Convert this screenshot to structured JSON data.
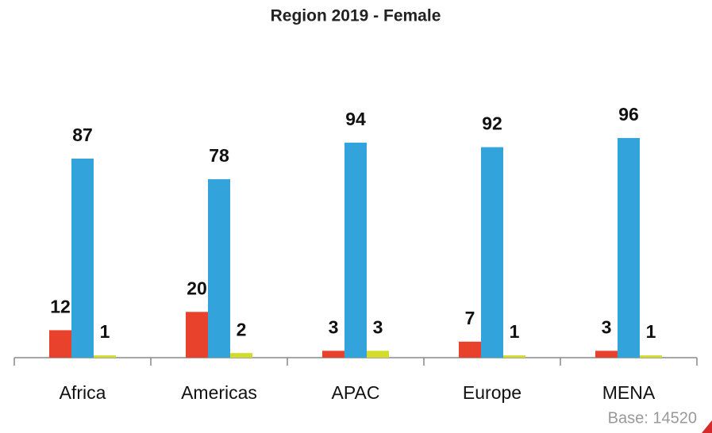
{
  "chart_data": {
    "type": "bar",
    "title": "Region 2019 - Female",
    "categories": [
      "Africa",
      "Americas",
      "APAC",
      "Europe",
      "MENA"
    ],
    "series": [
      {
        "color": "#e8412c",
        "values": [
          12,
          20,
          3,
          7,
          3
        ]
      },
      {
        "color": "#33a3dc",
        "values": [
          87,
          78,
          94,
          92,
          96
        ]
      },
      {
        "color": "#d4dc2a",
        "values": [
          1,
          2,
          3,
          1,
          1
        ]
      }
    ],
    "ylim": [
      0,
      100
    ],
    "note": "Base: 14520"
  }
}
